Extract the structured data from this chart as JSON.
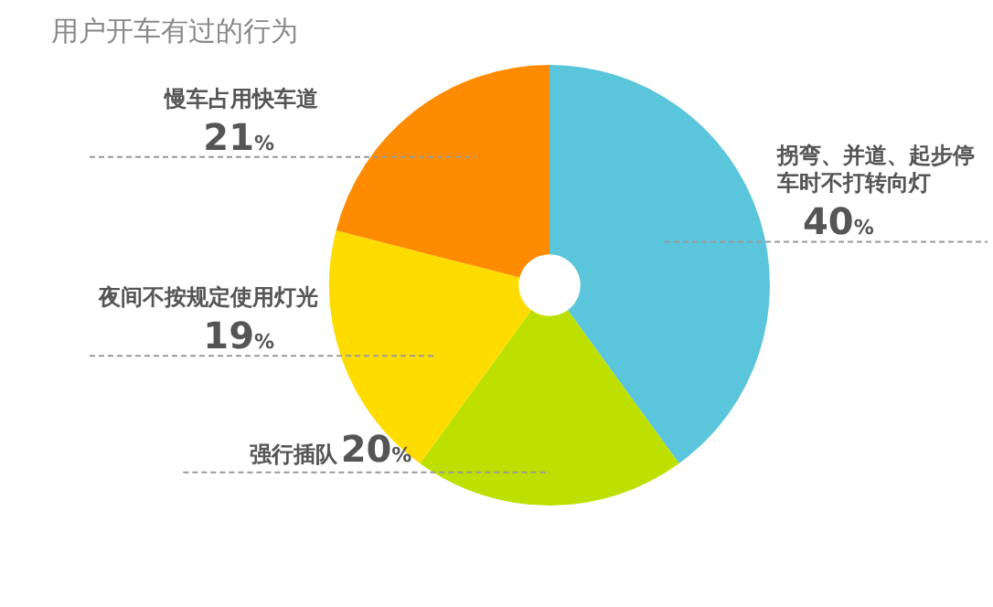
{
  "chart_data": {
    "type": "donut",
    "title": "用户开车有过的行为",
    "categories": [
      "拐弯、并道、起步停车时不打转向灯",
      "强行插队",
      "夜间不按规定使用灯光",
      "慢车占用快车道"
    ],
    "values": [
      40,
      20,
      19,
      21
    ],
    "colors": [
      "#5bc5dc",
      "#bde000",
      "#ffdc00",
      "#ff8c00"
    ],
    "value_labels": [
      "40%",
      "20%",
      "19%",
      "21%"
    ],
    "legend": false
  }
}
